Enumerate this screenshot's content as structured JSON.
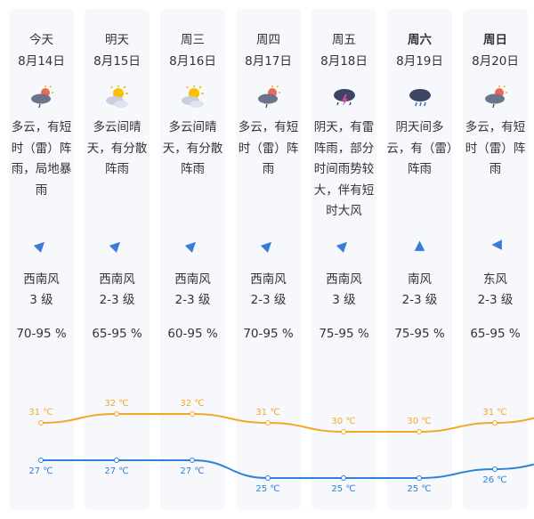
{
  "days": [
    {
      "label": "今天",
      "date": "8月14日",
      "icon": "cloud-thunder-rain-sun",
      "desc": "多云，有短时（雷）阵雨，局地暴雨",
      "wind_dir": "西南风",
      "wind_level": "3 级",
      "humidity": "70-95 %",
      "wind_angle": 45,
      "high": "31 ℃",
      "low": "27 ℃",
      "bold": false
    },
    {
      "label": "明天",
      "date": "8月15日",
      "icon": "partly-sunny",
      "desc": "多云间晴天，有分散阵雨",
      "wind_dir": "西南风",
      "wind_level": "2-3 级",
      "humidity": "65-95 %",
      "wind_angle": 45,
      "high": "32 ℃",
      "low": "27 ℃",
      "bold": false
    },
    {
      "label": "周三",
      "date": "8月16日",
      "icon": "partly-sunny",
      "desc": "多云间晴天，有分散阵雨",
      "wind_dir": "西南风",
      "wind_level": "2-3 级",
      "humidity": "60-95 %",
      "wind_angle": 45,
      "high": "32 ℃",
      "low": "27 ℃",
      "bold": false
    },
    {
      "label": "周四",
      "date": "8月17日",
      "icon": "cloud-thunder-rain-sun",
      "desc": "多云，有短时（雷）阵雨",
      "wind_dir": "西南风",
      "wind_level": "2-3 级",
      "humidity": "70-95 %",
      "wind_angle": 45,
      "high": "31 ℃",
      "low": "25 ℃",
      "bold": false
    },
    {
      "label": "周五",
      "date": "8月18日",
      "icon": "thunderstorm",
      "desc": "阴天，有雷阵雨，部分时间雨势较大，伴有短时大风",
      "wind_dir": "西南风",
      "wind_level": "3 级",
      "humidity": "75-95 %",
      "wind_angle": 45,
      "high": "30 ℃",
      "low": "25 ℃",
      "bold": false
    },
    {
      "label": "周六",
      "date": "8月19日",
      "icon": "cloud-rain",
      "desc": "阴天间多云，有（雷）阵雨",
      "wind_dir": "南风",
      "wind_level": "2-3 级",
      "humidity": "75-95 %",
      "wind_angle": 0,
      "high": "30 ℃",
      "low": "25 ℃",
      "bold": true
    },
    {
      "label": "周日",
      "date": "8月20日",
      "icon": "cloud-thunder-rain-sun",
      "desc": "多云，有短时（雷）阵雨",
      "wind_dir": "东风",
      "wind_level": "2-3 级",
      "humidity": "65-95 %",
      "wind_angle": -90,
      "high": "31 ℃",
      "low": "26 ℃",
      "bold": true
    }
  ],
  "highs": [
    31,
    32,
    32,
    31,
    30,
    30,
    31
  ],
  "lows": [
    27,
    27,
    27,
    25,
    25,
    25,
    26
  ],
  "colors": {
    "high": "#f5a623",
    "low": "#2f80d8"
  }
}
